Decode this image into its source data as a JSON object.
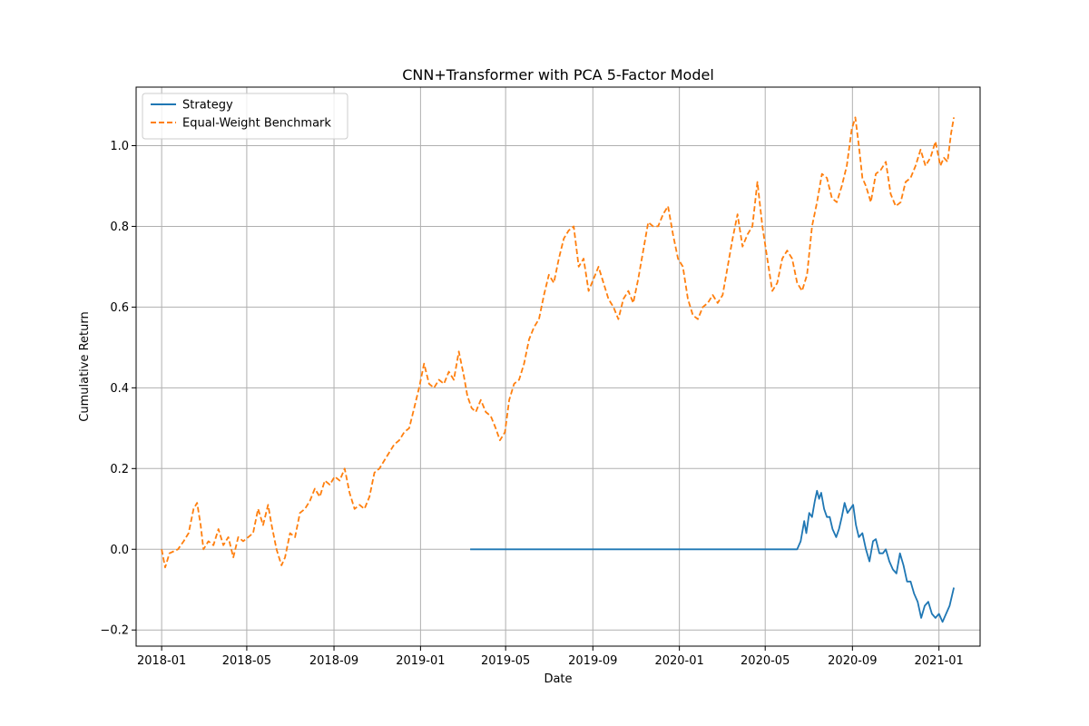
{
  "chart_data": {
    "type": "line",
    "title": "CNN+Transformer with PCA 5-Factor Model",
    "xlabel": "Date",
    "ylabel": "Cumulative Return",
    "x_ticks": [
      "2018-01",
      "2018-05",
      "2018-09",
      "2019-01",
      "2019-05",
      "2019-09",
      "2020-01",
      "2020-05",
      "2020-09",
      "2021-01"
    ],
    "y_ticks": [
      "−0.2",
      "0.0",
      "0.2",
      "0.4",
      "0.6",
      "0.8",
      "1.0"
    ],
    "xlim": [
      "2017-11-26",
      "2021-02-28"
    ],
    "ylim": [
      -0.24,
      1.145
    ],
    "grid": true,
    "legend": "upper left",
    "series": [
      {
        "name": "Strategy",
        "color": "#1f77b4",
        "style": "solid",
        "points": [
          [
            "2019-03-12",
            0.0
          ],
          [
            "2020-06-15",
            0.0
          ],
          [
            "2020-06-20",
            0.02
          ],
          [
            "2020-06-25",
            0.07
          ],
          [
            "2020-06-28",
            0.04
          ],
          [
            "2020-07-02",
            0.09
          ],
          [
            "2020-07-06",
            0.08
          ],
          [
            "2020-07-10",
            0.12
          ],
          [
            "2020-07-13",
            0.145
          ],
          [
            "2020-07-16",
            0.125
          ],
          [
            "2020-07-19",
            0.14
          ],
          [
            "2020-07-23",
            0.1
          ],
          [
            "2020-07-27",
            0.08
          ],
          [
            "2020-07-31",
            0.08
          ],
          [
            "2020-08-04",
            0.05
          ],
          [
            "2020-08-09",
            0.03
          ],
          [
            "2020-08-13",
            0.05
          ],
          [
            "2020-08-17",
            0.08
          ],
          [
            "2020-08-21",
            0.115
          ],
          [
            "2020-08-25",
            0.09
          ],
          [
            "2020-08-29",
            0.1
          ],
          [
            "2020-09-02",
            0.11
          ],
          [
            "2020-09-06",
            0.06
          ],
          [
            "2020-09-10",
            0.03
          ],
          [
            "2020-09-15",
            0.04
          ],
          [
            "2020-09-20",
            0.0
          ],
          [
            "2020-09-25",
            -0.03
          ],
          [
            "2020-09-30",
            0.02
          ],
          [
            "2020-10-04",
            0.025
          ],
          [
            "2020-10-09",
            -0.01
          ],
          [
            "2020-10-14",
            -0.01
          ],
          [
            "2020-10-18",
            0.0
          ],
          [
            "2020-10-23",
            -0.03
          ],
          [
            "2020-10-28",
            -0.05
          ],
          [
            "2020-11-02",
            -0.06
          ],
          [
            "2020-11-07",
            -0.01
          ],
          [
            "2020-11-12",
            -0.04
          ],
          [
            "2020-11-17",
            -0.08
          ],
          [
            "2020-11-22",
            -0.08
          ],
          [
            "2020-11-27",
            -0.11
          ],
          [
            "2020-12-02",
            -0.13
          ],
          [
            "2020-12-07",
            -0.17
          ],
          [
            "2020-12-12",
            -0.14
          ],
          [
            "2020-12-17",
            -0.13
          ],
          [
            "2020-12-22",
            -0.16
          ],
          [
            "2020-12-27",
            -0.17
          ],
          [
            "2021-01-01",
            -0.16
          ],
          [
            "2021-01-06",
            -0.18
          ],
          [
            "2021-01-11",
            -0.16
          ],
          [
            "2021-01-16",
            -0.14
          ],
          [
            "2021-01-22",
            -0.095
          ]
        ]
      },
      {
        "name": "Equal-Weight Benchmark",
        "color": "#ff7f0e",
        "style": "dashed",
        "points": [
          [
            "2018-01-01",
            0.0
          ],
          [
            "2018-01-06",
            -0.045
          ],
          [
            "2018-01-12",
            -0.01
          ],
          [
            "2018-01-18",
            -0.005
          ],
          [
            "2018-01-24",
            0.0
          ],
          [
            "2018-02-01",
            0.02
          ],
          [
            "2018-02-08",
            0.04
          ],
          [
            "2018-02-15",
            0.1
          ],
          [
            "2018-02-20",
            0.115
          ],
          [
            "2018-02-25",
            0.06
          ],
          [
            "2018-03-01",
            0.0
          ],
          [
            "2018-03-08",
            0.02
          ],
          [
            "2018-03-15",
            0.01
          ],
          [
            "2018-03-22",
            0.05
          ],
          [
            "2018-03-29",
            0.01
          ],
          [
            "2018-04-05",
            0.03
          ],
          [
            "2018-04-12",
            -0.02
          ],
          [
            "2018-04-19",
            0.03
          ],
          [
            "2018-04-26",
            0.02
          ],
          [
            "2018-05-03",
            0.03
          ],
          [
            "2018-05-10",
            0.04
          ],
          [
            "2018-05-17",
            0.1
          ],
          [
            "2018-05-24",
            0.06
          ],
          [
            "2018-05-31",
            0.11
          ],
          [
            "2018-06-05",
            0.06
          ],
          [
            "2018-06-12",
            0.0
          ],
          [
            "2018-06-19",
            -0.04
          ],
          [
            "2018-06-24",
            -0.02
          ],
          [
            "2018-07-01",
            0.04
          ],
          [
            "2018-07-08",
            0.03
          ],
          [
            "2018-07-15",
            0.09
          ],
          [
            "2018-07-22",
            0.1
          ],
          [
            "2018-07-29",
            0.12
          ],
          [
            "2018-08-05",
            0.15
          ],
          [
            "2018-08-12",
            0.13
          ],
          [
            "2018-08-19",
            0.17
          ],
          [
            "2018-08-26",
            0.16
          ],
          [
            "2018-09-02",
            0.18
          ],
          [
            "2018-09-09",
            0.17
          ],
          [
            "2018-09-16",
            0.2
          ],
          [
            "2018-09-23",
            0.14
          ],
          [
            "2018-09-30",
            0.1
          ],
          [
            "2018-10-07",
            0.11
          ],
          [
            "2018-10-14",
            0.1
          ],
          [
            "2018-10-21",
            0.13
          ],
          [
            "2018-10-28",
            0.19
          ],
          [
            "2018-11-04",
            0.2
          ],
          [
            "2018-11-11",
            0.22
          ],
          [
            "2018-11-18",
            0.24
          ],
          [
            "2018-11-25",
            0.26
          ],
          [
            "2018-12-02",
            0.27
          ],
          [
            "2018-12-09",
            0.29
          ],
          [
            "2018-12-16",
            0.3
          ],
          [
            "2018-12-23",
            0.35
          ],
          [
            "2018-12-30",
            0.4
          ],
          [
            "2019-01-06",
            0.46
          ],
          [
            "2019-01-13",
            0.41
          ],
          [
            "2019-01-20",
            0.4
          ],
          [
            "2019-01-27",
            0.42
          ],
          [
            "2019-02-03",
            0.41
          ],
          [
            "2019-02-10",
            0.44
          ],
          [
            "2019-02-17",
            0.42
          ],
          [
            "2019-02-24",
            0.49
          ],
          [
            "2019-03-03",
            0.43
          ],
          [
            "2019-03-08",
            0.38
          ],
          [
            "2019-03-14",
            0.35
          ],
          [
            "2019-03-20",
            0.34
          ],
          [
            "2019-03-27",
            0.37
          ],
          [
            "2019-04-03",
            0.34
          ],
          [
            "2019-04-10",
            0.33
          ],
          [
            "2019-04-17",
            0.3
          ],
          [
            "2019-04-23",
            0.27
          ],
          [
            "2019-04-30",
            0.29
          ],
          [
            "2019-05-06",
            0.37
          ],
          [
            "2019-05-13",
            0.41
          ],
          [
            "2019-05-20",
            0.42
          ],
          [
            "2019-05-27",
            0.46
          ],
          [
            "2019-06-03",
            0.52
          ],
          [
            "2019-06-10",
            0.55
          ],
          [
            "2019-06-17",
            0.57
          ],
          [
            "2019-06-24",
            0.63
          ],
          [
            "2019-07-01",
            0.68
          ],
          [
            "2019-07-08",
            0.66
          ],
          [
            "2019-07-15",
            0.72
          ],
          [
            "2019-07-22",
            0.77
          ],
          [
            "2019-07-29",
            0.79
          ],
          [
            "2019-08-05",
            0.8
          ],
          [
            "2019-08-12",
            0.7
          ],
          [
            "2019-08-19",
            0.72
          ],
          [
            "2019-08-26",
            0.64
          ],
          [
            "2019-09-02",
            0.67
          ],
          [
            "2019-09-09",
            0.7
          ],
          [
            "2019-09-16",
            0.66
          ],
          [
            "2019-09-23",
            0.62
          ],
          [
            "2019-09-30",
            0.6
          ],
          [
            "2019-10-07",
            0.57
          ],
          [
            "2019-10-14",
            0.62
          ],
          [
            "2019-10-21",
            0.64
          ],
          [
            "2019-10-28",
            0.61
          ],
          [
            "2019-11-04",
            0.67
          ],
          [
            "2019-11-11",
            0.74
          ],
          [
            "2019-11-18",
            0.81
          ],
          [
            "2019-11-25",
            0.8
          ],
          [
            "2019-12-02",
            0.8
          ],
          [
            "2019-12-09",
            0.83
          ],
          [
            "2019-12-16",
            0.85
          ],
          [
            "2019-12-23",
            0.78
          ],
          [
            "2019-12-30",
            0.72
          ],
          [
            "2020-01-06",
            0.7
          ],
          [
            "2020-01-13",
            0.62
          ],
          [
            "2020-01-20",
            0.58
          ],
          [
            "2020-01-27",
            0.57
          ],
          [
            "2020-02-03",
            0.6
          ],
          [
            "2020-02-10",
            0.61
          ],
          [
            "2020-02-17",
            0.63
          ],
          [
            "2020-02-24",
            0.61
          ],
          [
            "2020-03-02",
            0.63
          ],
          [
            "2020-03-09",
            0.7
          ],
          [
            "2020-03-16",
            0.77
          ],
          [
            "2020-03-23",
            0.83
          ],
          [
            "2020-03-30",
            0.75
          ],
          [
            "2020-04-06",
            0.78
          ],
          [
            "2020-04-13",
            0.8
          ],
          [
            "2020-04-20",
            0.91
          ],
          [
            "2020-04-27",
            0.8
          ],
          [
            "2020-05-04",
            0.72
          ],
          [
            "2020-05-11",
            0.64
          ],
          [
            "2020-05-18",
            0.66
          ],
          [
            "2020-05-25",
            0.72
          ],
          [
            "2020-06-01",
            0.74
          ],
          [
            "2020-06-08",
            0.72
          ],
          [
            "2020-06-15",
            0.66
          ],
          [
            "2020-06-22",
            0.64
          ],
          [
            "2020-06-29",
            0.68
          ],
          [
            "2020-07-06",
            0.8
          ],
          [
            "2020-07-13",
            0.86
          ],
          [
            "2020-07-20",
            0.93
          ],
          [
            "2020-07-27",
            0.92
          ],
          [
            "2020-08-03",
            0.87
          ],
          [
            "2020-08-10",
            0.86
          ],
          [
            "2020-08-17",
            0.9
          ],
          [
            "2020-08-24",
            0.95
          ],
          [
            "2020-08-31",
            1.04
          ],
          [
            "2020-09-05",
            1.07
          ],
          [
            "2020-09-10",
            1.0
          ],
          [
            "2020-09-15",
            0.92
          ],
          [
            "2020-09-20",
            0.9
          ],
          [
            "2020-09-27",
            0.86
          ],
          [
            "2020-10-04",
            0.93
          ],
          [
            "2020-10-11",
            0.94
          ],
          [
            "2020-10-18",
            0.96
          ],
          [
            "2020-10-25",
            0.88
          ],
          [
            "2020-11-01",
            0.85
          ],
          [
            "2020-11-08",
            0.86
          ],
          [
            "2020-11-15",
            0.91
          ],
          [
            "2020-11-22",
            0.92
          ],
          [
            "2020-11-29",
            0.95
          ],
          [
            "2020-12-06",
            0.99
          ],
          [
            "2020-12-13",
            0.95
          ],
          [
            "2020-12-20",
            0.97
          ],
          [
            "2020-12-27",
            1.01
          ],
          [
            "2021-01-03",
            0.95
          ],
          [
            "2021-01-08",
            0.97
          ],
          [
            "2021-01-13",
            0.96
          ],
          [
            "2021-01-18",
            1.03
          ],
          [
            "2021-01-22",
            1.07
          ]
        ]
      }
    ]
  }
}
